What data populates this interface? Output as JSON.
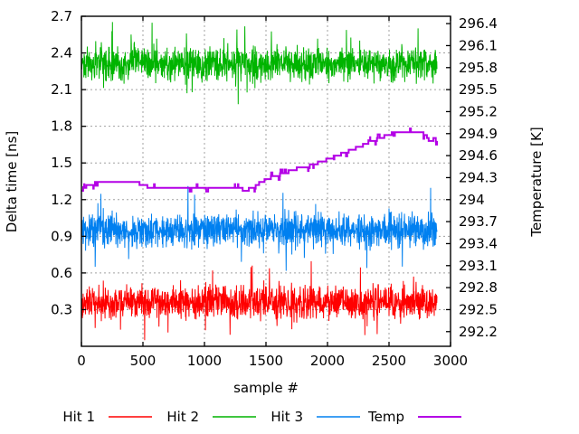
{
  "chart_data": {
    "type": "line",
    "title": "",
    "xlabel": "sample #",
    "ylabel_left": "Delta time [ns]",
    "ylabel_right": "Temperature [K]",
    "x_min": 0,
    "x_max": 3000,
    "x_ticks": [
      "0",
      "500",
      "1000",
      "1500",
      "2000",
      "2500",
      "3000"
    ],
    "y_left_min": 0.0,
    "y_left_max": 2.7,
    "y_left_ticks": [
      "0.3",
      "0.6",
      "0.9",
      "1.2",
      "1.5",
      "1.8",
      "2.1",
      "2.4",
      "2.7"
    ],
    "y_right_min": 292.0,
    "y_right_max": 296.5,
    "y_right_ticks": [
      "292.2",
      "292.5",
      "292.8",
      "293.1",
      "293.4",
      "293.7",
      "294",
      "294.3",
      "294.6",
      "294.9",
      "295.2",
      "295.5",
      "295.8",
      "296.1",
      "296.4"
    ],
    "grid": true,
    "grid_color": "#a0a0a0",
    "background": "#ffffff",
    "legend_position": "below-plot",
    "n_samples": 2890,
    "series": [
      {
        "name": "Hit 1",
        "color": "#ff0000",
        "axis": "left",
        "style": "noisy",
        "mean": 0.36,
        "noise": 0.13,
        "spike_prob": 0.02,
        "spike_amp": 0.1
      },
      {
        "name": "Hit 2",
        "color": "#00b400",
        "axis": "left",
        "style": "noisy",
        "mean": 2.31,
        "noise": 0.13,
        "spike_prob": 0.02,
        "spike_amp": 0.1
      },
      {
        "name": "Hit 3",
        "color": "#0080f0",
        "axis": "left",
        "style": "noisy",
        "mean": 0.95,
        "noise": 0.13,
        "spike_prob": 0.02,
        "spike_amp": 0.1
      },
      {
        "name": "Temp",
        "color": "#b400e6",
        "axis": "right",
        "style": "step",
        "keypoints": [
          [
            0,
            294.1
          ],
          [
            40,
            294.18
          ],
          [
            100,
            294.22
          ],
          [
            470,
            294.22
          ],
          [
            550,
            294.17
          ],
          [
            1280,
            294.17
          ],
          [
            1330,
            294.12
          ],
          [
            1400,
            294.17
          ],
          [
            1460,
            294.24
          ],
          [
            1540,
            294.3
          ],
          [
            1650,
            294.36
          ],
          [
            1750,
            294.42
          ],
          [
            1870,
            294.47
          ],
          [
            1990,
            294.54
          ],
          [
            2110,
            294.62
          ],
          [
            2230,
            294.7
          ],
          [
            2330,
            294.77
          ],
          [
            2430,
            294.84
          ],
          [
            2520,
            294.9
          ],
          [
            2620,
            294.93
          ],
          [
            2750,
            294.93
          ],
          [
            2800,
            294.88
          ],
          [
            2830,
            294.79
          ],
          [
            2870,
            294.83
          ],
          [
            2890,
            294.81
          ]
        ]
      }
    ]
  }
}
